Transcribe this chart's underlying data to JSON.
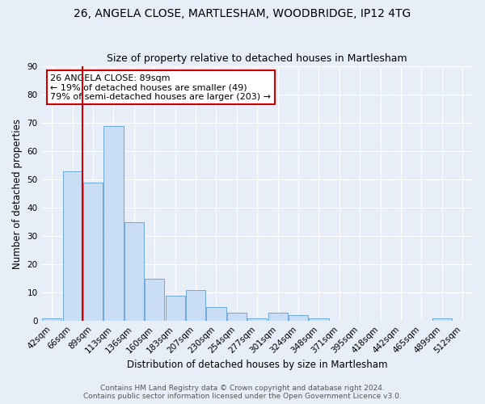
{
  "title": "26, ANGELA CLOSE, MARTLESHAM, WOODBRIDGE, IP12 4TG",
  "subtitle": "Size of property relative to detached houses in Martlesham",
  "xlabel": "Distribution of detached houses by size in Martlesham",
  "ylabel": "Number of detached properties",
  "bin_labels": [
    "42sqm",
    "66sqm",
    "89sqm",
    "113sqm",
    "136sqm",
    "160sqm",
    "183sqm",
    "207sqm",
    "230sqm",
    "254sqm",
    "277sqm",
    "301sqm",
    "324sqm",
    "348sqm",
    "371sqm",
    "395sqm",
    "418sqm",
    "442sqm",
    "465sqm",
    "489sqm",
    "512sqm"
  ],
  "bar_heights": [
    1,
    53,
    49,
    69,
    35,
    15,
    9,
    11,
    5,
    3,
    1,
    3,
    2,
    1,
    0,
    0,
    0,
    0,
    0,
    1,
    0
  ],
  "bar_color": "#c9ddf5",
  "bar_edge_color": "#6fa8dc",
  "ylim": [
    0,
    90
  ],
  "yticks": [
    0,
    10,
    20,
    30,
    40,
    50,
    60,
    70,
    80,
    90
  ],
  "annotation_title": "26 ANGELA CLOSE: 89sqm",
  "annotation_line1": "← 19% of detached houses are smaller (49)",
  "annotation_line2": "79% of semi-detached houses are larger (203) →",
  "annotation_box_color": "#ffffff",
  "annotation_box_edge": "#cc0000",
  "footer1": "Contains HM Land Registry data © Crown copyright and database right 2024.",
  "footer2": "Contains public sector information licensed under the Open Government Licence v3.0.",
  "background_color": "#e8eef8",
  "grid_color": "#ffffff",
  "title_fontsize": 10,
  "subtitle_fontsize": 9,
  "axis_label_fontsize": 8.5,
  "tick_fontsize": 7.5,
  "annotation_fontsize": 8,
  "footer_fontsize": 6.5
}
